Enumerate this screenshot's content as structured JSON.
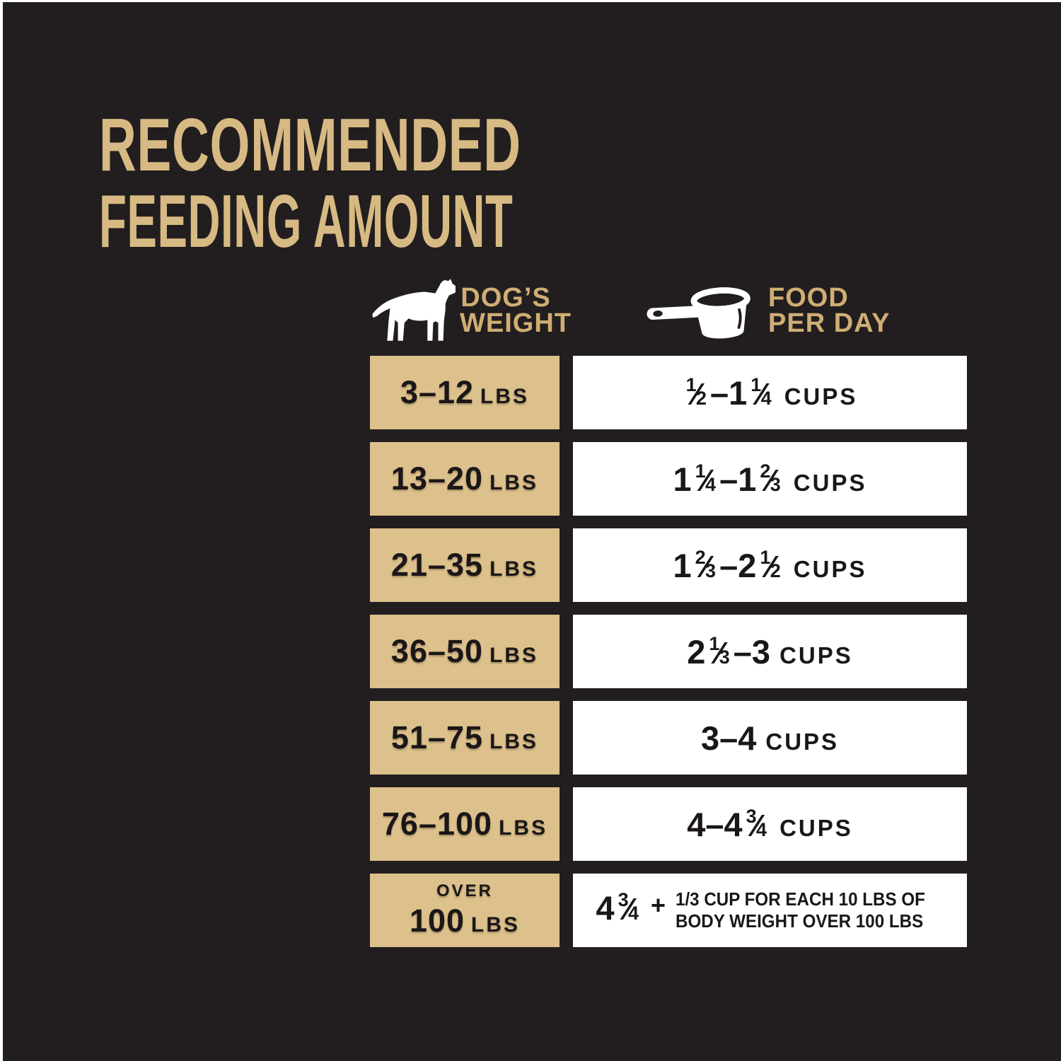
{
  "colors": {
    "background": "#221e1f",
    "gold_text": "#d7ba83",
    "header_gold": "#cfae74",
    "gold_box": "#ddc18c",
    "box_text": "#1b1718",
    "white_box": "#ffffff"
  },
  "title": {
    "line1": "RECOMMENDED",
    "line2": "FEEDING AMOUNT"
  },
  "header": {
    "weight": {
      "icon": "dog-icon",
      "line1": "DOG’S",
      "line2": "WEIGHT"
    },
    "food": {
      "icon": "measuring-cup-icon",
      "line1": "FOOD",
      "line2": "PER DAY"
    }
  },
  "table": {
    "rows": [
      {
        "weight": {
          "range": "3–12",
          "unit": "LBS"
        },
        "amount": [
          {
            "frac": [
              "1",
              "2"
            ]
          },
          {
            "text": "–1"
          },
          {
            "frac": [
              "1",
              "4"
            ]
          },
          {
            "unit": "CUPS"
          }
        ]
      },
      {
        "weight": {
          "range": "13–20",
          "unit": "LBS"
        },
        "amount": [
          {
            "text": "1"
          },
          {
            "frac": [
              "1",
              "4"
            ]
          },
          {
            "text": "–1"
          },
          {
            "frac": [
              "2",
              "3"
            ]
          },
          {
            "unit": "CUPS"
          }
        ]
      },
      {
        "weight": {
          "range": "21–35",
          "unit": "LBS"
        },
        "amount": [
          {
            "text": "1"
          },
          {
            "frac": [
              "2",
              "3"
            ]
          },
          {
            "text": "–2"
          },
          {
            "frac": [
              "1",
              "2"
            ]
          },
          {
            "unit": "CUPS"
          }
        ]
      },
      {
        "weight": {
          "range": "36–50",
          "unit": "LBS"
        },
        "amount": [
          {
            "text": "2"
          },
          {
            "frac": [
              "1",
              "3"
            ]
          },
          {
            "text": "–3"
          },
          {
            "unit": "CUPS"
          }
        ]
      },
      {
        "weight": {
          "range": "51–75",
          "unit": "LBS"
        },
        "amount": [
          {
            "text": "3–4"
          },
          {
            "unit": "CUPS"
          }
        ]
      },
      {
        "weight": {
          "range": "76–100",
          "unit": "LBS"
        },
        "amount": [
          {
            "text": "4–4"
          },
          {
            "frac": [
              "3",
              "4"
            ]
          },
          {
            "unit": "CUPS"
          }
        ]
      },
      {
        "weight": {
          "over": "OVER",
          "range": "100",
          "unit": "LBS"
        },
        "amount": [
          {
            "text": "4"
          },
          {
            "frac": [
              "3",
              "4"
            ]
          },
          {
            "plus": "+"
          },
          {
            "note": [
              "1/3 CUP FOR EACH 10 LBS OF",
              "BODY WEIGHT OVER 100 LBS"
            ]
          }
        ]
      }
    ]
  },
  "chart_data": {
    "type": "table",
    "title": "RECOMMENDED FEEDING AMOUNT",
    "columns": [
      "DOG’S WEIGHT",
      "FOOD PER DAY"
    ],
    "rows": [
      [
        "3–12 LBS",
        "½–1¼ CUPS"
      ],
      [
        "13–20 LBS",
        "1¼–1⅔ CUPS"
      ],
      [
        "21–35 LBS",
        "1⅔–2½ CUPS"
      ],
      [
        "36–50 LBS",
        "2⅓–3 CUPS"
      ],
      [
        "51–75 LBS",
        "3–4 CUPS"
      ],
      [
        "76–100 LBS",
        "4–4¾ CUPS"
      ],
      [
        "OVER 100 LBS",
        "4¾ + 1/3 CUP FOR EACH 10 LBS OF BODY WEIGHT OVER 100 LBS"
      ]
    ]
  }
}
